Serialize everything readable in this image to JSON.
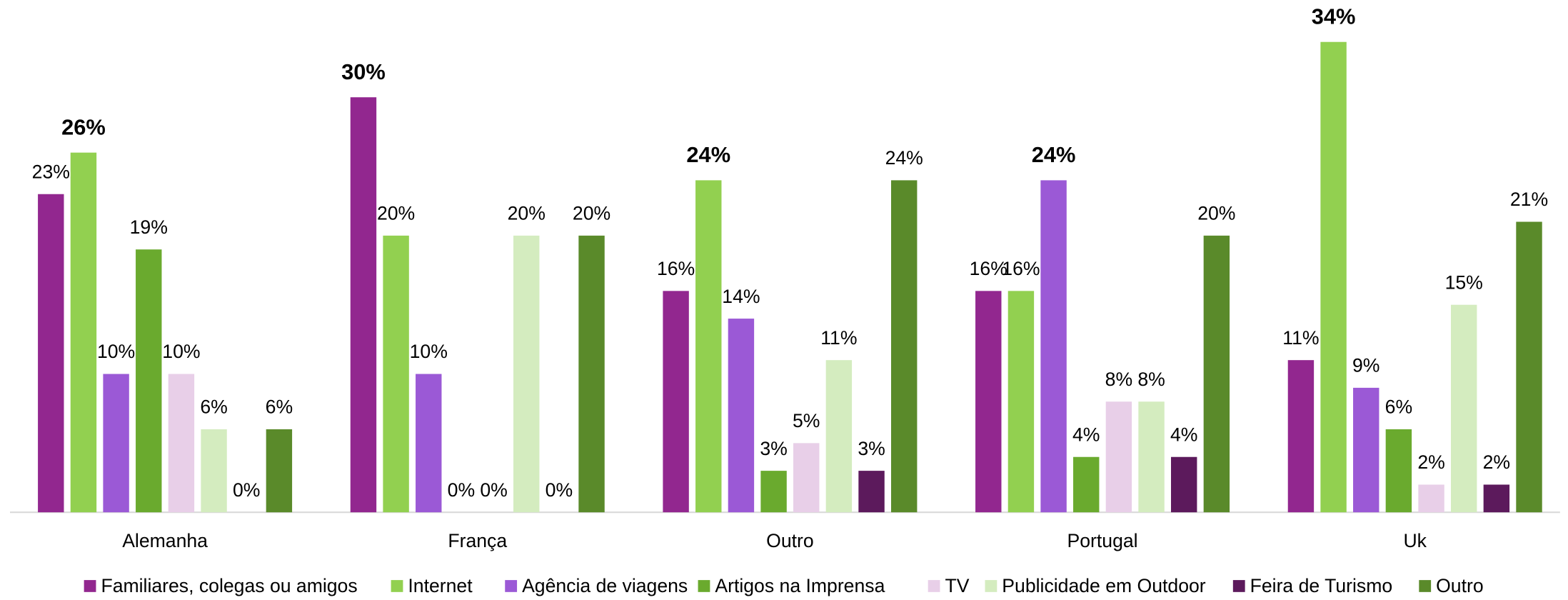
{
  "chart_data": {
    "type": "bar",
    "categories": [
      "Alemanha",
      "França",
      "Outro",
      "Portugal",
      "Uk"
    ],
    "series": [
      {
        "name": "Familiares, colegas ou amigos",
        "color": "#92278f",
        "values": [
          23,
          30,
          16,
          16,
          11
        ],
        "value_labels": [
          "23%",
          "30%",
          "16%",
          "16%",
          "11%"
        ]
      },
      {
        "name": "Internet",
        "color": "#92d050",
        "values": [
          26,
          20,
          24,
          16,
          34
        ],
        "value_labels": [
          "26%",
          "20%",
          "24%",
          "16%",
          "34%"
        ]
      },
      {
        "name": "Agência de viagens",
        "color": "#9b59d6",
        "values": [
          10,
          10,
          14,
          24,
          9
        ],
        "value_labels": [
          "10%",
          "10%",
          "14%",
          "24%",
          "9%"
        ]
      },
      {
        "name": "Artigos na Imprensa",
        "color": "#6aaa2e",
        "values": [
          19,
          0,
          3,
          4,
          6
        ],
        "value_labels": [
          "19%",
          "0%",
          "3%",
          "4%",
          "6%"
        ]
      },
      {
        "name": "TV",
        "color": "#e8cfe8",
        "values": [
          10,
          0,
          5,
          8,
          2
        ],
        "value_labels": [
          "10%",
          "0%",
          "5%",
          "8%",
          "2%"
        ]
      },
      {
        "name": "Publicidade em Outdoor",
        "color": "#d4ecbf",
        "values": [
          6,
          20,
          11,
          8,
          15
        ],
        "value_labels": [
          "6%",
          "20%",
          "11%",
          "8%",
          "15%"
        ]
      },
      {
        "name": "Feira de Turismo",
        "color": "#5c1a5c",
        "values": [
          0,
          0,
          3,
          4,
          2
        ],
        "value_labels": [
          "0%",
          "0%",
          "3%",
          "4%",
          "2%"
        ]
      },
      {
        "name": "Outro",
        "color": "#5a8a2a",
        "values": [
          6,
          20,
          24,
          20,
          21
        ],
        "value_labels": [
          "6%",
          "20%",
          "24%",
          "20%",
          "21%"
        ]
      }
    ]
  }
}
